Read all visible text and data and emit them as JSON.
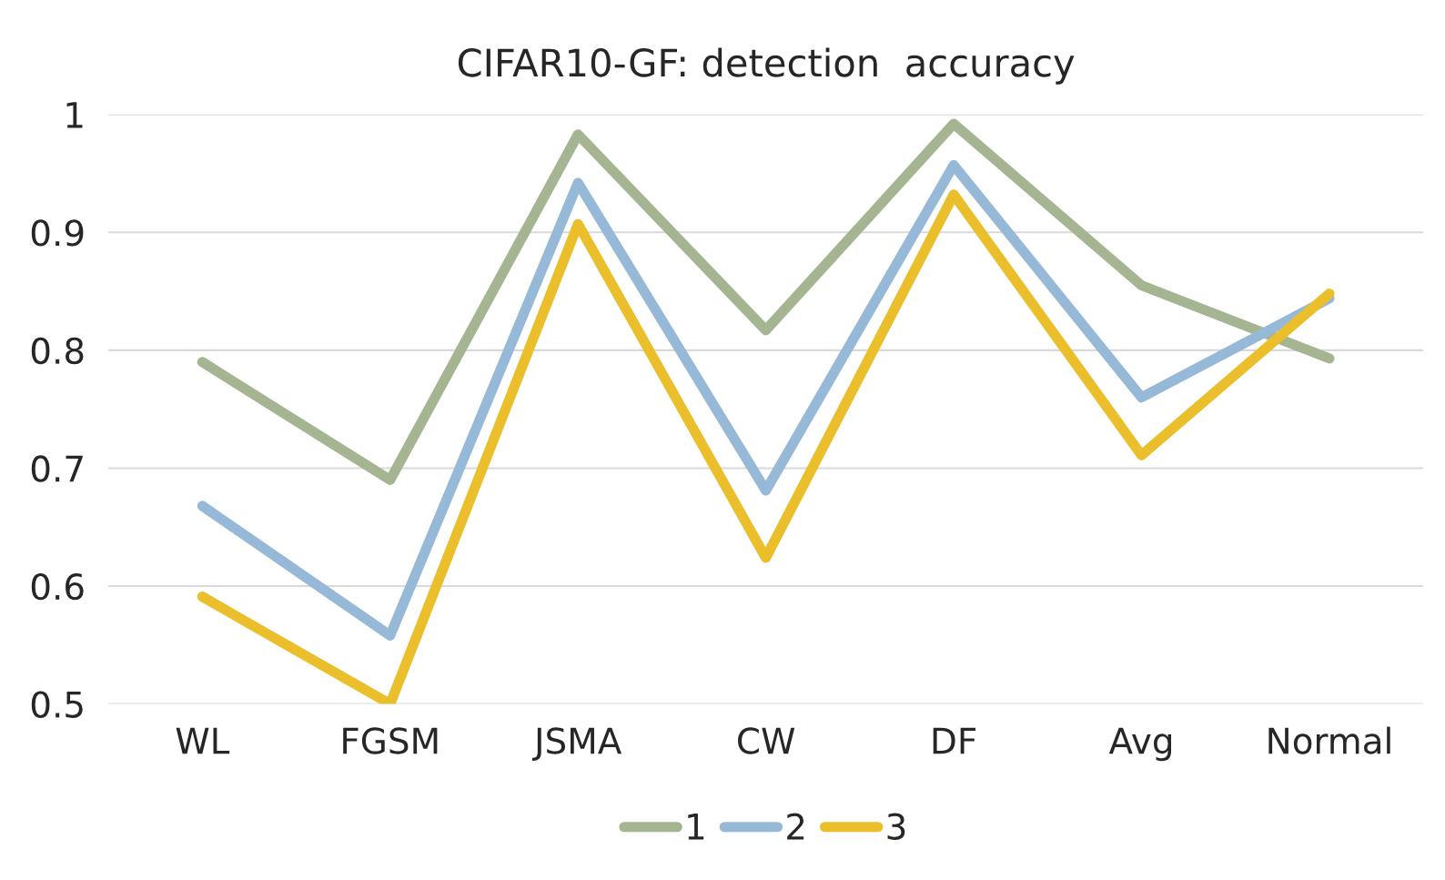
{
  "chart_data": {
    "type": "line",
    "title": "CIFAR10-GF: detection  accuracy",
    "categories": [
      "WL",
      "FGSM",
      "JSMA",
      "CW",
      "DF",
      "Avg",
      "Normal"
    ],
    "series": [
      {
        "name": "1",
        "color": "#a5b592",
        "values": [
          0.79,
          0.69,
          0.983,
          0.817,
          0.992,
          0.855,
          0.793
        ]
      },
      {
        "name": "2",
        "color": "#97b9d8",
        "values": [
          0.668,
          0.558,
          0.942,
          0.681,
          0.957,
          0.76,
          0.844
        ]
      },
      {
        "name": "3",
        "color": "#ebbf2c",
        "values": [
          0.591,
          0.5,
          0.907,
          0.624,
          0.932,
          0.711,
          0.848
        ]
      }
    ],
    "ylim": [
      0.5,
      1
    ],
    "yticks": [
      0.5,
      0.6,
      0.7,
      0.8,
      0.9,
      1
    ],
    "grid": "y",
    "legend": "bottom",
    "marker": "none",
    "line_style": "solid"
  }
}
